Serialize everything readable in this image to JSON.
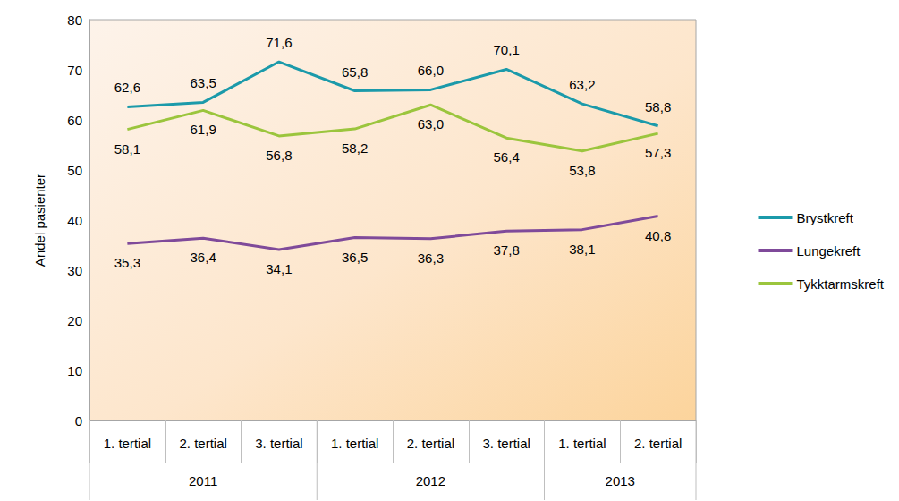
{
  "chart_data": {
    "type": "line",
    "categories": [
      "1. tertial",
      "2. tertial",
      "3. tertial",
      "1. tertial",
      "2. tertial",
      "3. tertial",
      "1. tertial",
      "2. tertial"
    ],
    "category_groups": [
      {
        "label": "2011",
        "size": 3
      },
      {
        "label": "2012",
        "size": 3
      },
      {
        "label": "2013",
        "size": 2
      }
    ],
    "y_label": "Andel pasienter",
    "ylim": [
      0,
      80
    ],
    "yticks": [
      0,
      10,
      20,
      30,
      40,
      50,
      60,
      70,
      80
    ],
    "grid": false,
    "legend": "right",
    "data_labels": true,
    "series": [
      {
        "name": "Brystkreft",
        "color": "#1b9aaa",
        "values": [
          62.6,
          63.5,
          71.6,
          65.8,
          66.0,
          70.1,
          63.2,
          58.8
        ],
        "value_labels": [
          "62,6",
          "63,5",
          "71,6",
          "65,8",
          "66,0",
          "70,1",
          "63,2",
          "58,8"
        ]
      },
      {
        "name": "Lungekreft",
        "color": "#7f4a9a",
        "values": [
          35.3,
          36.4,
          34.1,
          36.5,
          36.3,
          37.8,
          38.1,
          40.8
        ],
        "value_labels": [
          "35,3",
          "36,4",
          "34,1",
          "36,5",
          "36,3",
          "37,8",
          "38,1",
          "40,8"
        ]
      },
      {
        "name": "Tykktarmskreft",
        "color": "#9bc53d",
        "values": [
          58.1,
          61.9,
          56.8,
          58.2,
          63.0,
          56.4,
          53.8,
          57.3
        ],
        "value_labels": [
          "58,1",
          "61,9",
          "56,8",
          "58,2",
          "63,0",
          "56,4",
          "53,8",
          "57,3"
        ]
      }
    ]
  }
}
